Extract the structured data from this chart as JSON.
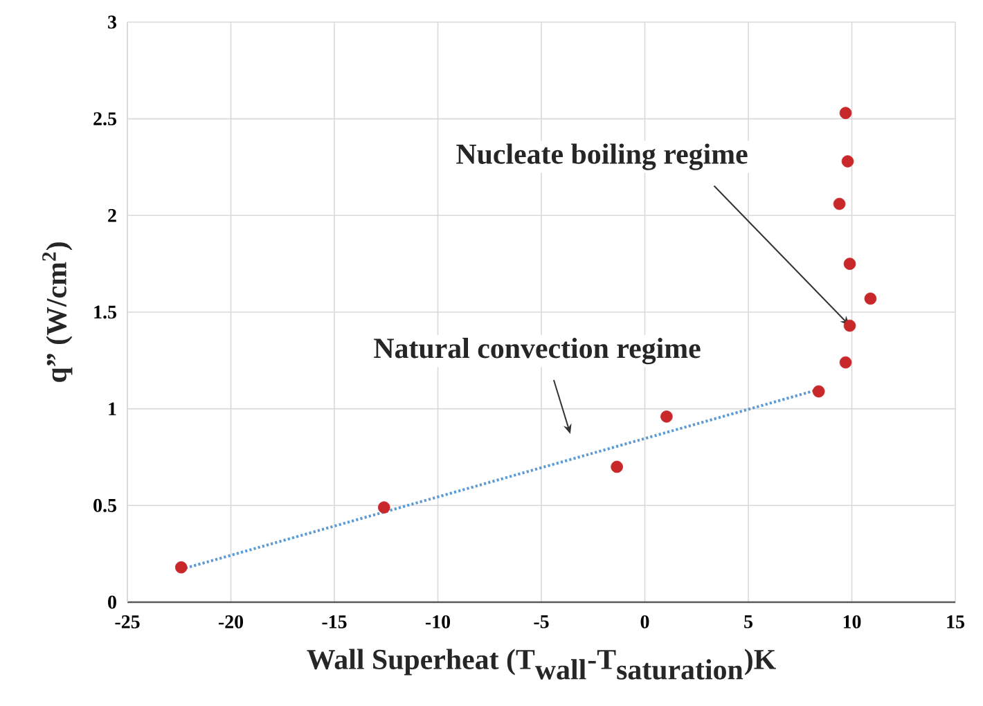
{
  "chart_data": {
    "type": "scatter",
    "xlabel": "\\textbf{Wall Superheat (T}_{\\textbf{wall}}\\textbf{-T}_{\\textbf{saturation}}\\textbf{)K}",
    "ylabel": "q” (W/cm$^{2}$)",
    "xlim": [
      -25,
      15
    ],
    "xticks": [
      -25,
      -20,
      -15,
      -10,
      -5,
      0,
      5,
      10,
      15
    ],
    "ylim": [
      0,
      3
    ],
    "yticks": [
      0,
      0.5,
      1,
      1.5,
      2,
      2.5,
      3
    ],
    "grid": true,
    "marker": "circle",
    "series": [
      {
        "type": "scatter",
        "color": "#c8282a",
        "x": [
          -22.4,
          -12.6,
          -1.35,
          1.05,
          8.4,
          9.7,
          9.9,
          10.9,
          9.9,
          9.4,
          9.8,
          9.7
        ],
        "values": [
          0.18,
          0.49,
          0.7,
          0.96,
          1.09,
          1.24,
          1.43,
          1.57,
          1.75,
          2.06,
          2.28,
          2.53
        ]
      },
      {
        "type": "line",
        "color": "#5b9bd5",
        "line_style": "dotted",
        "marker": "none",
        "x": [
          -22.4,
          8.4
        ],
        "values": [
          0.17,
          1.1
        ]
      }
    ],
    "annotations": [
      {
        "text": "Nucleate boiling regime",
        "x": 9.9,
        "y": 1.43
      },
      "Natural convection regime"
    ]
  }
}
